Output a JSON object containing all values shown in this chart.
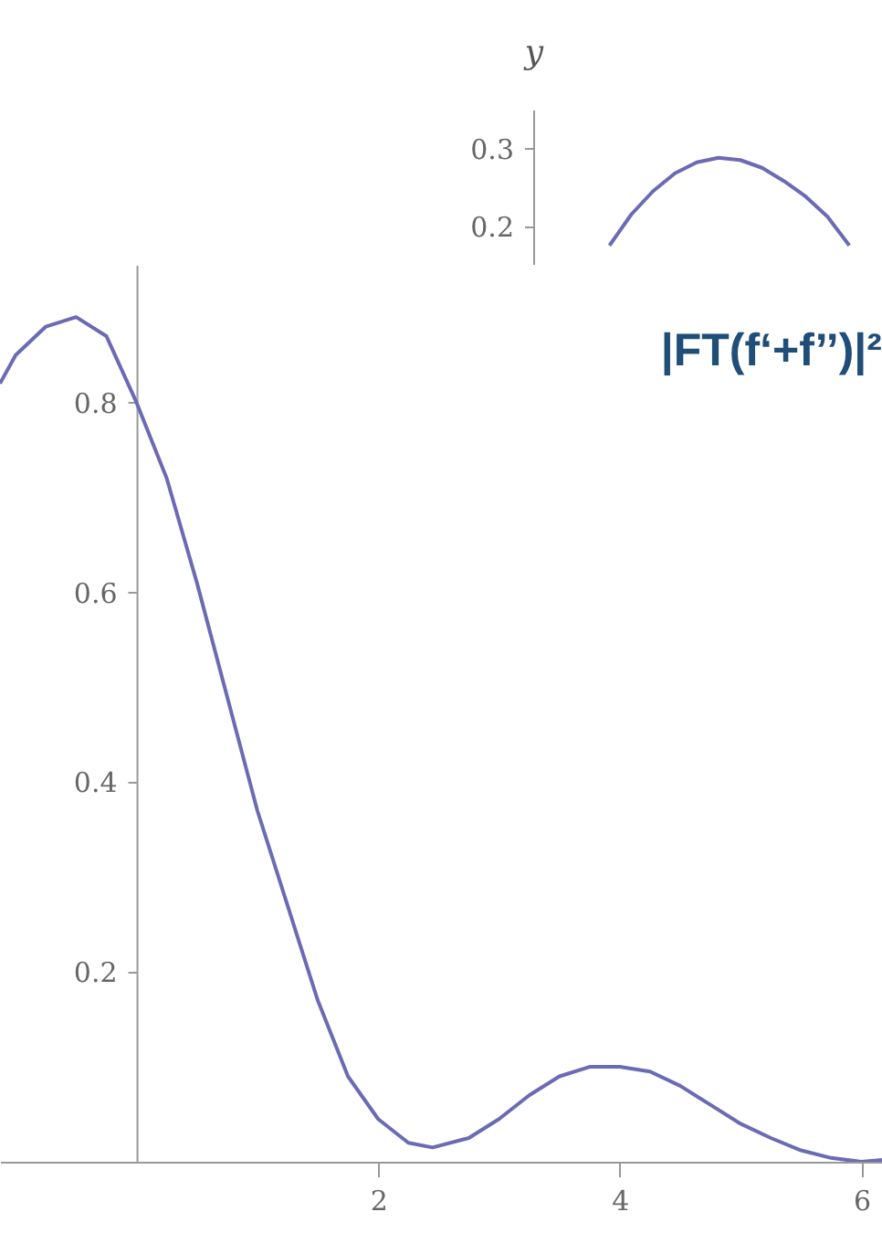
{
  "chart_data": [
    {
      "type": "line",
      "ylabel": "y",
      "tick_labels": "y",
      "color": "#6b6bb5",
      "categories": [
        null,
        null,
        null,
        null,
        null,
        null,
        null,
        null,
        null,
        null,
        null,
        null,
        null,
        null,
        null,
        null
      ],
      "values": [
        null,
        null,
        null,
        0.175,
        0.215,
        0.245,
        0.268,
        0.282,
        0.288,
        0.285,
        0.275,
        0.258,
        0.238,
        0.212,
        0.175,
        null
      ],
      "ylim": [
        0.15,
        0.35
      ],
      "yticks": [
        0.2,
        0.3
      ]
    },
    {
      "type": "line",
      "title": "|FT(f‘+f’’)|²",
      "color": "#6b6bb5",
      "x": [
        -1.13,
        -1.0,
        -0.75,
        -0.5,
        -0.25,
        0,
        0.25,
        0.5,
        0.75,
        1.0,
        1.25,
        1.5,
        1.75,
        2.0,
        2.25,
        2.45,
        2.75,
        3.0,
        3.25,
        3.5,
        3.75,
        4.0,
        4.25,
        4.5,
        4.75,
        5.0,
        5.25,
        5.5,
        5.75,
        6.0,
        6.17
      ],
      "values": [
        0.82,
        0.85,
        0.88,
        0.89,
        0.87,
        0.8,
        0.72,
        0.61,
        0.49,
        0.37,
        0.27,
        0.17,
        0.09,
        0.045,
        0.02,
        0.015,
        0.025,
        0.045,
        0.07,
        0.09,
        0.1,
        0.1,
        0.095,
        0.08,
        0.06,
        0.04,
        0.025,
        0.012,
        0.004,
        0.0,
        0.002
      ],
      "xlim": [
        -1.13,
        6.17
      ],
      "ylim": [
        0,
        0.945
      ],
      "xticks": [
        2,
        4,
        6
      ],
      "yticks": [
        0.2,
        0.4,
        0.6,
        0.8
      ]
    }
  ]
}
